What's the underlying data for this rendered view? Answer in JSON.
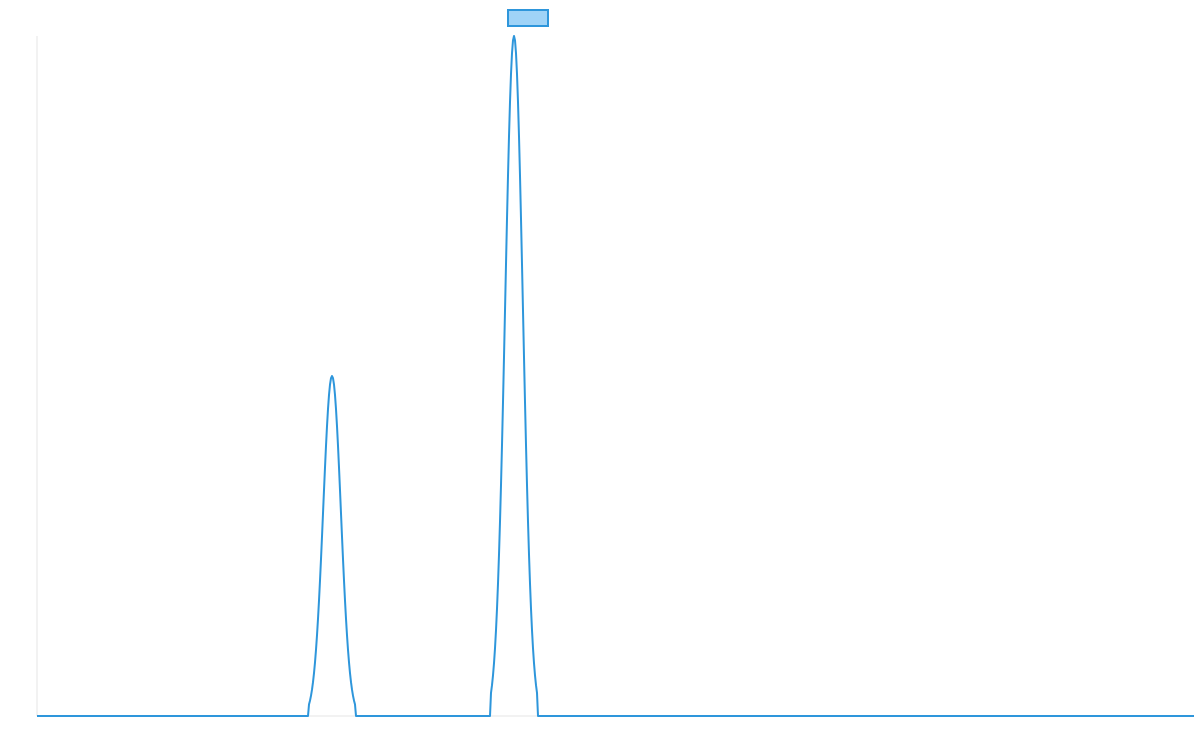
{
  "chart_data": {
    "type": "line",
    "title": "",
    "xlabel": "",
    "ylabel": "",
    "ylim": [
      0,
      100
    ],
    "xlim": [
      0,
      1157
    ],
    "grid": false,
    "legend": {
      "position": "top-center",
      "series_name": "",
      "swatch_fill": "#9fd3f7",
      "swatch_stroke": "#2e96db"
    },
    "line_color": "#2e96db",
    "axis_color": "#e6e6e6",
    "peaks": [
      {
        "center": 295,
        "half_width": 23,
        "value": 50
      },
      {
        "center": 477,
        "half_width": 23,
        "value": 100
      }
    ],
    "series": [
      {
        "name": "",
        "points": [
          [
            0,
            0
          ],
          [
            272,
            0
          ],
          [
            275,
            1
          ],
          [
            279,
            4
          ],
          [
            283,
            11
          ],
          [
            287,
            22
          ],
          [
            291,
            38
          ],
          [
            295,
            50
          ],
          [
            299,
            38
          ],
          [
            303,
            22
          ],
          [
            307,
            11
          ],
          [
            311,
            4
          ],
          [
            315,
            1
          ],
          [
            318,
            0
          ],
          [
            454,
            0
          ],
          [
            457,
            1
          ],
          [
            461,
            5
          ],
          [
            465,
            18
          ],
          [
            469,
            42
          ],
          [
            473,
            73
          ],
          [
            477,
            100
          ],
          [
            481,
            73
          ],
          [
            485,
            42
          ],
          [
            489,
            18
          ],
          [
            493,
            5
          ],
          [
            497,
            1
          ],
          [
            500,
            0
          ],
          [
            1157,
            0
          ]
        ]
      }
    ]
  }
}
